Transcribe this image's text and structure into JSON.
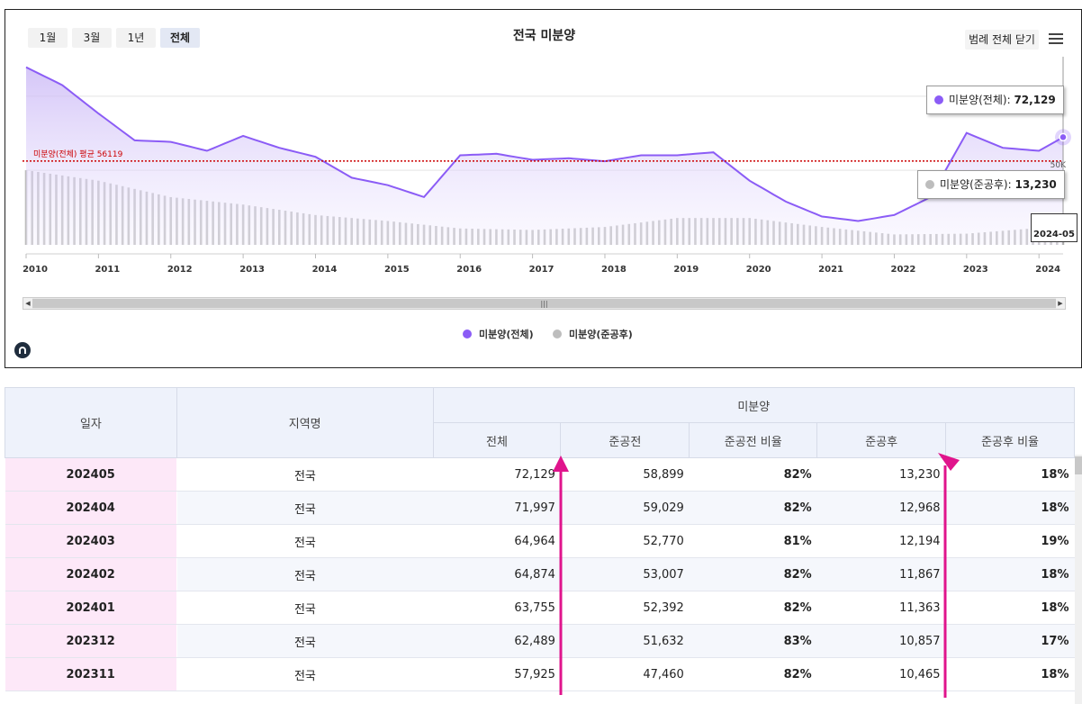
{
  "range_buttons": [
    {
      "label": "1월",
      "active": false
    },
    {
      "label": "3월",
      "active": false
    },
    {
      "label": "1년",
      "active": false
    },
    {
      "label": "전체",
      "active": true
    }
  ],
  "legend_toggle_label": "범례 전체 닫기",
  "chart_data": {
    "type": "area",
    "title": "전국 미분양",
    "x_tick_labels": [
      "2010",
      "2011",
      "2012",
      "2013",
      "2014",
      "2015",
      "2016",
      "2017",
      "2018",
      "2019",
      "2020",
      "2021",
      "2022",
      "2023",
      "2024"
    ],
    "y_tick_label": "50K",
    "y_tick_value": 50000,
    "series": [
      {
        "name": "미분양(전체)",
        "type": "area",
        "color": "#8b5cf6",
        "x": [
          "2010-01",
          "2010-07",
          "2011-01",
          "2011-07",
          "2012-01",
          "2012-07",
          "2013-01",
          "2013-07",
          "2014-01",
          "2014-07",
          "2015-01",
          "2015-07",
          "2016-01",
          "2016-07",
          "2017-01",
          "2017-07",
          "2018-01",
          "2018-07",
          "2019-01",
          "2019-07",
          "2020-01",
          "2020-07",
          "2021-01",
          "2021-07",
          "2022-01",
          "2022-07",
          "2023-01",
          "2023-07",
          "2024-01",
          "2024-05"
        ],
        "values": [
          119000,
          107000,
          88000,
          70000,
          69000,
          63000,
          73000,
          65000,
          59000,
          45000,
          40000,
          32000,
          60000,
          61000,
          57000,
          58000,
          56000,
          60000,
          60000,
          62000,
          43000,
          29000,
          19000,
          16000,
          20000,
          32000,
          75000,
          65000,
          63000,
          72129
        ]
      },
      {
        "name": "미분양(준공후)",
        "type": "bar",
        "color": "#bdbdbd",
        "x": [
          "2010-01",
          "2011-01",
          "2012-01",
          "2013-01",
          "2014-01",
          "2015-01",
          "2016-01",
          "2017-01",
          "2018-01",
          "2019-01",
          "2020-01",
          "2021-01",
          "2022-01",
          "2023-01",
          "2024-01",
          "2024-05"
        ],
        "values": [
          50000,
          43000,
          32000,
          27000,
          20000,
          16000,
          11000,
          10000,
          12000,
          18000,
          18000,
          12000,
          7000,
          7500,
          11363,
          13230
        ]
      }
    ],
    "avg_line": {
      "label": "미분양(전체) 평균 56119",
      "value": 56119,
      "color": "#cc0000"
    },
    "y_max": 120000,
    "x_range": [
      "2010-01",
      "2024-05"
    ],
    "tooltips": {
      "total": {
        "label": "미분양(전체)",
        "value": "72,129"
      },
      "completed": {
        "label": "미분양(준공후)",
        "value": "13,230"
      },
      "date": "2024-05"
    },
    "legend": [
      "미분양(전체)",
      "미분양(준공후)"
    ],
    "legend_position": "bottom-center"
  },
  "table": {
    "headers": {
      "date": "일자",
      "region": "지역명",
      "group": "미분양",
      "cols": [
        "전체",
        "준공전",
        "준공전 비율",
        "준공후",
        "준공후 비율"
      ]
    },
    "rows": [
      {
        "date": "202405",
        "region": "전국",
        "total": "72,129",
        "pre": "58,899",
        "pre_ratio": "82%",
        "post": "13,230",
        "post_ratio": "18%"
      },
      {
        "date": "202404",
        "region": "전국",
        "total": "71,997",
        "pre": "59,029",
        "pre_ratio": "82%",
        "post": "12,968",
        "post_ratio": "18%"
      },
      {
        "date": "202403",
        "region": "전국",
        "total": "64,964",
        "pre": "52,770",
        "pre_ratio": "81%",
        "post": "12,194",
        "post_ratio": "19%"
      },
      {
        "date": "202402",
        "region": "전국",
        "total": "64,874",
        "pre": "53,007",
        "pre_ratio": "82%",
        "post": "11,867",
        "post_ratio": "18%"
      },
      {
        "date": "202401",
        "region": "전국",
        "total": "63,755",
        "pre": "52,392",
        "pre_ratio": "82%",
        "post": "11,363",
        "post_ratio": "18%"
      },
      {
        "date": "202312",
        "region": "전국",
        "total": "62,489",
        "pre": "51,632",
        "pre_ratio": "83%",
        "post": "10,857",
        "post_ratio": "17%"
      },
      {
        "date": "202311",
        "region": "전국",
        "total": "57,925",
        "pre": "47,460",
        "pre_ratio": "82%",
        "post": "10,465",
        "post_ratio": "18%"
      }
    ]
  },
  "colors": {
    "accent": "#8b5cf6",
    "bars": "#bdbdbd",
    "avg": "#cc0000",
    "annotation": "#e0148c"
  }
}
